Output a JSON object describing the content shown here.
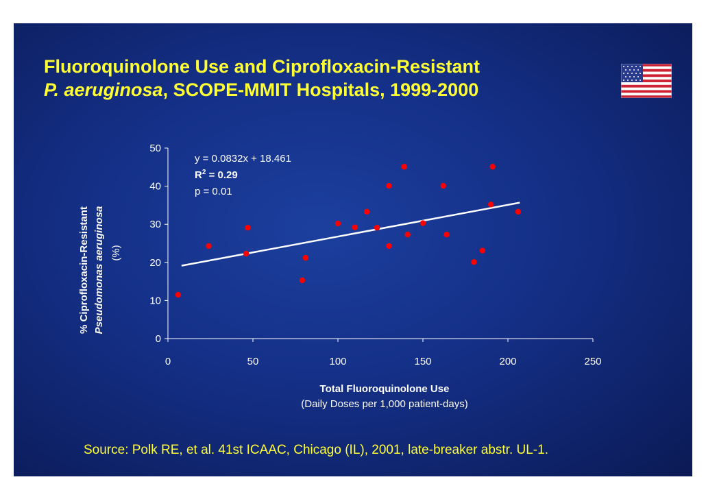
{
  "title": {
    "line1": "Fluoroquinolone Use and Ciprofloxacin-Resistant",
    "line2_italic": "P. aeruginosa",
    "line2_rest": ", SCOPE-MMIT Hospitals, 1999-2000"
  },
  "flag_icon": "us-flag-icon",
  "source": "Source: Polk RE, et al. 41st ICAAC, Chicago (IL), 2001, late-breaker abstr. UL-1.",
  "chart_data": {
    "type": "scatter",
    "title": "Fluoroquinolone Use and Ciprofloxacin-Resistant P. aeruginosa, SCOPE-MMIT Hospitals, 1999-2000",
    "xlabel": "Total Fluoroquinolone Use",
    "xlabel_sub": "(Daily Doses per 1,000 patient-days)",
    "ylabel_line1": "% Ciprofloxacin-Resistant",
    "ylabel_line2": "Pseudomonas aeruginosa",
    "ylabel_line3": "(%)",
    "xlim": [
      0,
      250
    ],
    "ylim": [
      0,
      50
    ],
    "xticks": [
      "0",
      "50",
      "100",
      "150",
      "200",
      "250"
    ],
    "yticks": [
      "0",
      "10",
      "20",
      "30",
      "40",
      "50"
    ],
    "points": [
      {
        "x": 6,
        "y": 11.5
      },
      {
        "x": 24,
        "y": 24.3
      },
      {
        "x": 46,
        "y": 22.3
      },
      {
        "x": 47,
        "y": 29.1
      },
      {
        "x": 79,
        "y": 15.3
      },
      {
        "x": 81,
        "y": 21.2
      },
      {
        "x": 100,
        "y": 30.2
      },
      {
        "x": 110,
        "y": 29.2
      },
      {
        "x": 117,
        "y": 33.3
      },
      {
        "x": 123,
        "y": 29.1
      },
      {
        "x": 130,
        "y": 40.1
      },
      {
        "x": 130,
        "y": 24.3
      },
      {
        "x": 139,
        "y": 45.1
      },
      {
        "x": 141,
        "y": 27.3
      },
      {
        "x": 150,
        "y": 30.3
      },
      {
        "x": 162,
        "y": 40.1
      },
      {
        "x": 164,
        "y": 27.3
      },
      {
        "x": 180,
        "y": 20.1
      },
      {
        "x": 185,
        "y": 23.1
      },
      {
        "x": 190,
        "y": 35.2
      },
      {
        "x": 191,
        "y": 45.1
      },
      {
        "x": 206,
        "y": 33.3
      }
    ],
    "trendline": {
      "slope": 0.0832,
      "intercept": 18.461,
      "x_range": [
        8,
        207
      ]
    },
    "equation": "y = 0.0832x + 18.461",
    "r2_label": "R",
    "r2_sup": "2",
    "r2_value": " = 0.29",
    "p_value": "p = 0.01",
    "colors": {
      "point": "#ff0000",
      "trend": "#ffffff",
      "axis": "#ffffff"
    }
  }
}
